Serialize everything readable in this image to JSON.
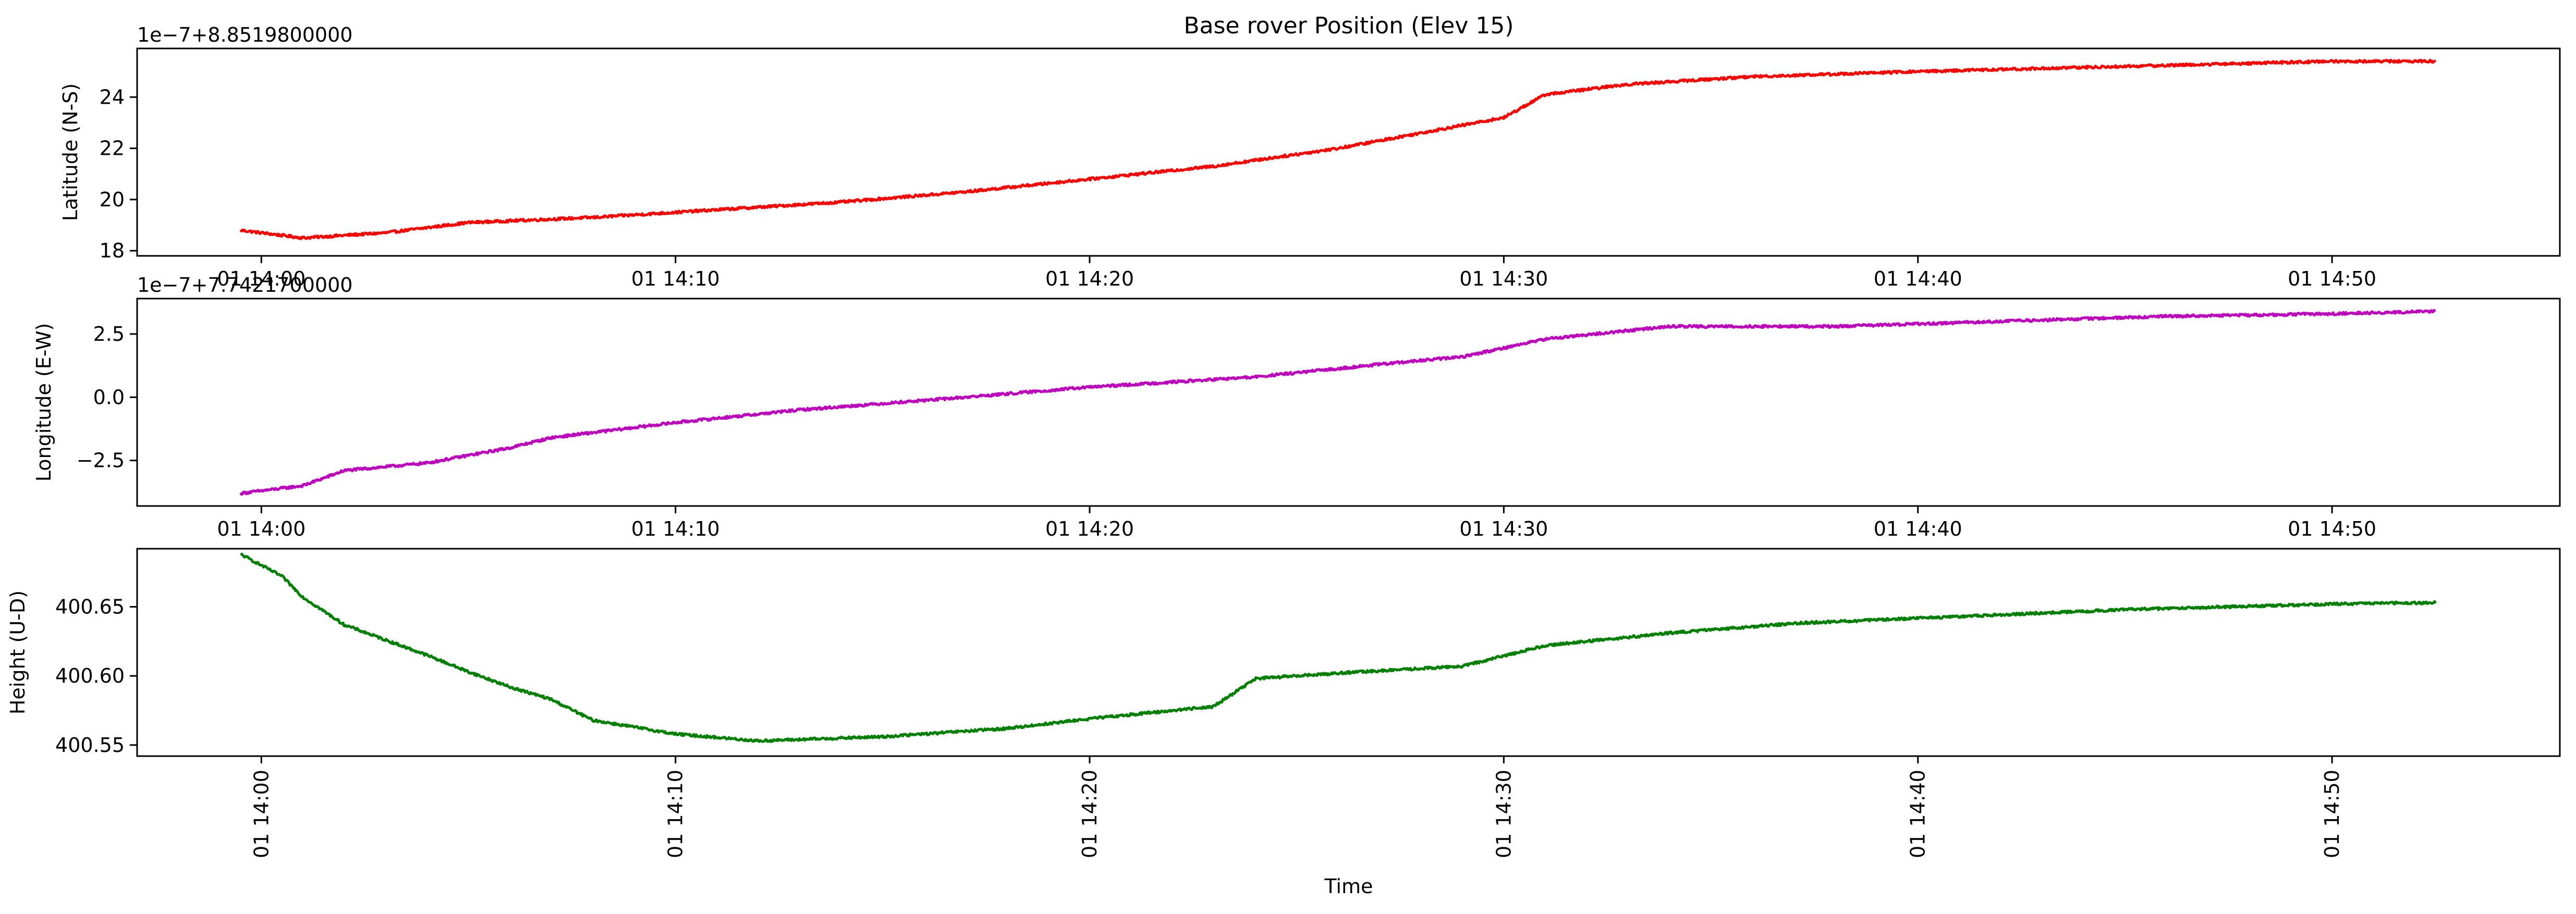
{
  "chart_data": [
    {
      "type": "line",
      "title": "Base rover Position (Elev 15)",
      "xlabel": "",
      "ylabel": "Latitude (N-S)",
      "offset_text": "1e−7+8.8519800000",
      "color": "#ff0000",
      "xlim": [
        "01 13:57:00",
        "01 14:55:30"
      ],
      "ylim": [
        17.8,
        25.9
      ],
      "xtick_labels": [
        "01 14:00",
        "01 14:10",
        "01 14:20",
        "01 14:30",
        "01 14:40",
        "01 14:50"
      ],
      "ytick_labels": [
        "18",
        "20",
        "22",
        "24"
      ],
      "ytick_values": [
        18,
        20,
        22,
        24
      ],
      "x": [
        "01 13:59:30",
        "01 14:01:00",
        "01 14:03:00",
        "01 14:05:00",
        "01 14:08:00",
        "01 14:11:00",
        "01 14:14:00",
        "01 14:17:00",
        "01 14:20:00",
        "01 14:23:00",
        "01 14:26:00",
        "01 14:28:00",
        "01 14:30:00",
        "01 14:31:00",
        "01 14:33:00",
        "01 14:36:00",
        "01 14:40:00",
        "01 14:45:00",
        "01 14:50:00",
        "01 14:52:30"
      ],
      "series": [
        {
          "values": [
            18.8,
            18.5,
            18.7,
            19.1,
            19.3,
            19.6,
            19.9,
            20.3,
            20.8,
            21.3,
            22.0,
            22.6,
            23.2,
            24.1,
            24.5,
            24.8,
            25.0,
            25.2,
            25.4,
            25.4
          ]
        }
      ]
    },
    {
      "type": "line",
      "ylabel": "Longitude (E-W)",
      "offset_text": "1e−7+7.7421700000",
      "color": "#bf00bf",
      "xlim": [
        "01 13:57:00",
        "01 14:55:30"
      ],
      "ylim": [
        -4.3,
        3.9
      ],
      "xtick_labels": [
        "01 14:00",
        "01 14:10",
        "01 14:20",
        "01 14:30",
        "01 14:40",
        "01 14:50"
      ],
      "ytick_labels": [
        "−2.5",
        "0.0",
        "2.5"
      ],
      "ytick_values": [
        -2.5,
        0.0,
        2.5
      ],
      "x": [
        "01 13:59:30",
        "01 14:01:00",
        "01 14:02:00",
        "01 14:04:00",
        "01 14:06:00",
        "01 14:07:00",
        "01 14:10:00",
        "01 14:13:00",
        "01 14:17:00",
        "01 14:20:00",
        "01 14:24:00",
        "01 14:27:00",
        "01 14:29:00",
        "01 14:31:00",
        "01 14:34:00",
        "01 14:38:00",
        "01 14:42:00",
        "01 14:46:00",
        "01 14:50:00",
        "01 14:52:30"
      ],
      "series": [
        {
          "values": [
            -3.8,
            -3.5,
            -2.9,
            -2.6,
            -2.0,
            -1.6,
            -1.0,
            -0.5,
            0.0,
            0.4,
            0.8,
            1.3,
            1.6,
            2.3,
            2.8,
            2.8,
            3.0,
            3.2,
            3.3,
            3.4
          ]
        }
      ]
    },
    {
      "type": "line",
      "ylabel": "Height (U-D)",
      "xlabel": "Time",
      "color": "#008000",
      "xlim": [
        "01 13:57:00",
        "01 14:55:30"
      ],
      "ylim": [
        400.542,
        400.692
      ],
      "xtick_labels": [
        "01 14:00",
        "01 14:10",
        "01 14:20",
        "01 14:30",
        "01 14:40",
        "01 14:50"
      ],
      "ytick_labels": [
        "400.55",
        "400.60",
        "400.65"
      ],
      "ytick_values": [
        400.55,
        400.6,
        400.65
      ],
      "x": [
        "01 13:59:30",
        "01 14:00:30",
        "01 14:01:00",
        "01 14:02:00",
        "01 14:04:00",
        "01 14:05:00",
        "01 14:06:00",
        "01 14:07:00",
        "01 14:08:00",
        "01 14:10:00",
        "01 14:12:00",
        "01 14:15:00",
        "01 14:18:00",
        "01 14:20:00",
        "01 14:23:00",
        "01 14:24:00",
        "01 14:26:00",
        "01 14:29:00",
        "01 14:31:00",
        "01 14:34:00",
        "01 14:37:00",
        "01 14:41:00",
        "01 14:45:00",
        "01 14:50:00",
        "01 14:52:30"
      ],
      "series": [
        {
          "values": [
            400.688,
            400.672,
            400.657,
            400.637,
            400.615,
            400.603,
            400.592,
            400.583,
            400.568,
            400.558,
            400.553,
            400.556,
            400.562,
            400.569,
            400.578,
            400.598,
            400.602,
            400.607,
            400.622,
            400.631,
            400.638,
            400.643,
            400.648,
            400.652,
            400.653
          ]
        }
      ]
    }
  ]
}
